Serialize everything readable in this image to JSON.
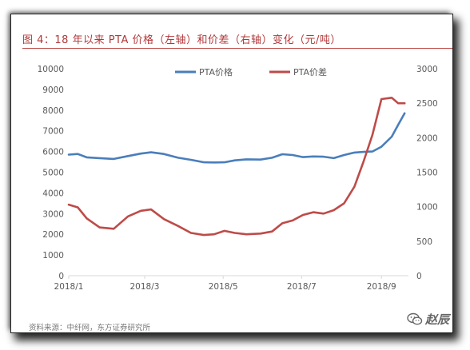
{
  "header": {
    "title": "图 4：18 年以来 PTA 价格（左轴）和价差（右轴）变化（元/吨）"
  },
  "footer": {
    "source": "资料来源：中纤网，东方证券研究所"
  },
  "watermark": {
    "text": "赵辰",
    "icon": "wechat-icon"
  },
  "colors": {
    "title": "#b2383a",
    "price_line": "#4a7ebb",
    "spread_line": "#be4b48",
    "axis": "#d9d9d9",
    "tick_text": "#595959"
  },
  "chart_data": {
    "type": "line",
    "title": "",
    "xlabel": "",
    "ylabel": "",
    "legend": "top-center",
    "grid": false,
    "x_ticks": [
      "2018/1",
      "2018/3",
      "2018/5",
      "2018/7",
      "2018/9"
    ],
    "y_left": {
      "lim": [
        0,
        10000
      ],
      "ticks": [
        "0",
        "1000",
        "2000",
        "3000",
        "4000",
        "5000",
        "6000",
        "7000",
        "8000",
        "9000",
        "10000"
      ]
    },
    "y_right": {
      "lim": [
        0,
        3000
      ],
      "ticks": [
        "0",
        "500",
        "1000",
        "1500",
        "2000",
        "2500",
        "3000"
      ]
    },
    "series": [
      {
        "name": "PTA价格",
        "axis": "left",
        "x": [
          "2018-01-01",
          "2018-01-08",
          "2018-01-15",
          "2018-01-25",
          "2018-02-05",
          "2018-02-16",
          "2018-02-26",
          "2018-03-06",
          "2018-03-16",
          "2018-03-27",
          "2018-04-06",
          "2018-04-16",
          "2018-04-24",
          "2018-05-02",
          "2018-05-10",
          "2018-05-19",
          "2018-05-30",
          "2018-06-08",
          "2018-06-16",
          "2018-06-24",
          "2018-07-02",
          "2018-07-10",
          "2018-07-18",
          "2018-07-26",
          "2018-08-03",
          "2018-08-11",
          "2018-08-18",
          "2018-08-25",
          "2018-09-01",
          "2018-09-09",
          "2018-09-14",
          "2018-09-19"
        ],
        "values": [
          5850,
          5880,
          5720,
          5680,
          5640,
          5780,
          5900,
          5960,
          5880,
          5700,
          5600,
          5480,
          5470,
          5480,
          5570,
          5620,
          5610,
          5700,
          5870,
          5830,
          5730,
          5760,
          5750,
          5680,
          5830,
          5950,
          5980,
          6000,
          6230,
          6720,
          7290,
          7850
        ]
      },
      {
        "name": "PTA价差",
        "axis": "right",
        "x": [
          "2018-01-01",
          "2018-01-08",
          "2018-01-15",
          "2018-01-25",
          "2018-02-05",
          "2018-02-16",
          "2018-02-26",
          "2018-03-06",
          "2018-03-16",
          "2018-03-27",
          "2018-04-06",
          "2018-04-16",
          "2018-04-24",
          "2018-05-02",
          "2018-05-10",
          "2018-05-19",
          "2018-05-30",
          "2018-06-08",
          "2018-06-16",
          "2018-06-24",
          "2018-07-02",
          "2018-07-10",
          "2018-07-18",
          "2018-07-26",
          "2018-08-03",
          "2018-08-11",
          "2018-08-18",
          "2018-08-25",
          "2018-09-01",
          "2018-09-09",
          "2018-09-14",
          "2018-09-19"
        ],
        "values": [
          1030,
          990,
          830,
          700,
          680,
          860,
          940,
          960,
          820,
          720,
          620,
          590,
          600,
          650,
          620,
          600,
          610,
          640,
          760,
          800,
          880,
          920,
          900,
          950,
          1050,
          1290,
          1650,
          2040,
          2560,
          2580,
          2500,
          2500
        ]
      }
    ]
  }
}
